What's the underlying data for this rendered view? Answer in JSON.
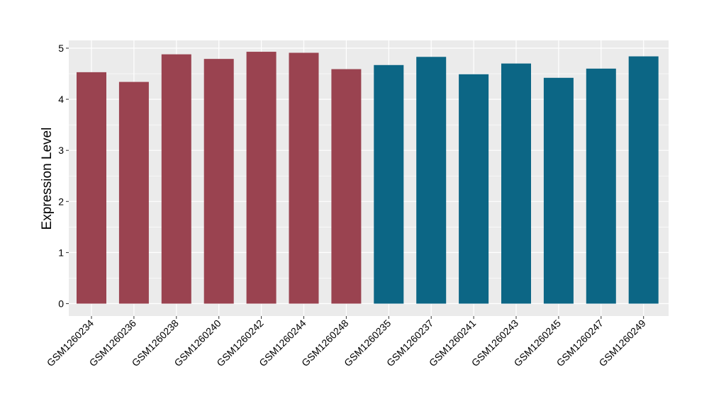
{
  "chart_data": {
    "type": "bar",
    "title": "",
    "xlabel": "",
    "ylabel": "Expression Level",
    "ylim": [
      0,
      5
    ],
    "yticks": [
      "0",
      "1",
      "2",
      "3",
      "4",
      "5"
    ],
    "grid": true,
    "legend": "none",
    "categories": [
      "GSM1260234",
      "GSM1260236",
      "GSM1260238",
      "GSM1260240",
      "GSM1260242",
      "GSM1260244",
      "GSM1260248",
      "GSM1260235",
      "GSM1260237",
      "GSM1260241",
      "GSM1260243",
      "GSM1260245",
      "GSM1260247",
      "GSM1260249"
    ],
    "values": [
      4.53,
      4.34,
      4.88,
      4.79,
      4.93,
      4.91,
      4.59,
      4.67,
      4.83,
      4.49,
      4.7,
      4.42,
      4.6,
      4.84
    ],
    "colors": [
      "#9a4350",
      "#9a4350",
      "#9a4350",
      "#9a4350",
      "#9a4350",
      "#9a4350",
      "#9a4350",
      "#0c6685",
      "#0c6685",
      "#0c6685",
      "#0c6685",
      "#0c6685",
      "#0c6685",
      "#0c6685"
    ],
    "panel_background": "#ebebeb",
    "grid_color": "#ffffff"
  }
}
